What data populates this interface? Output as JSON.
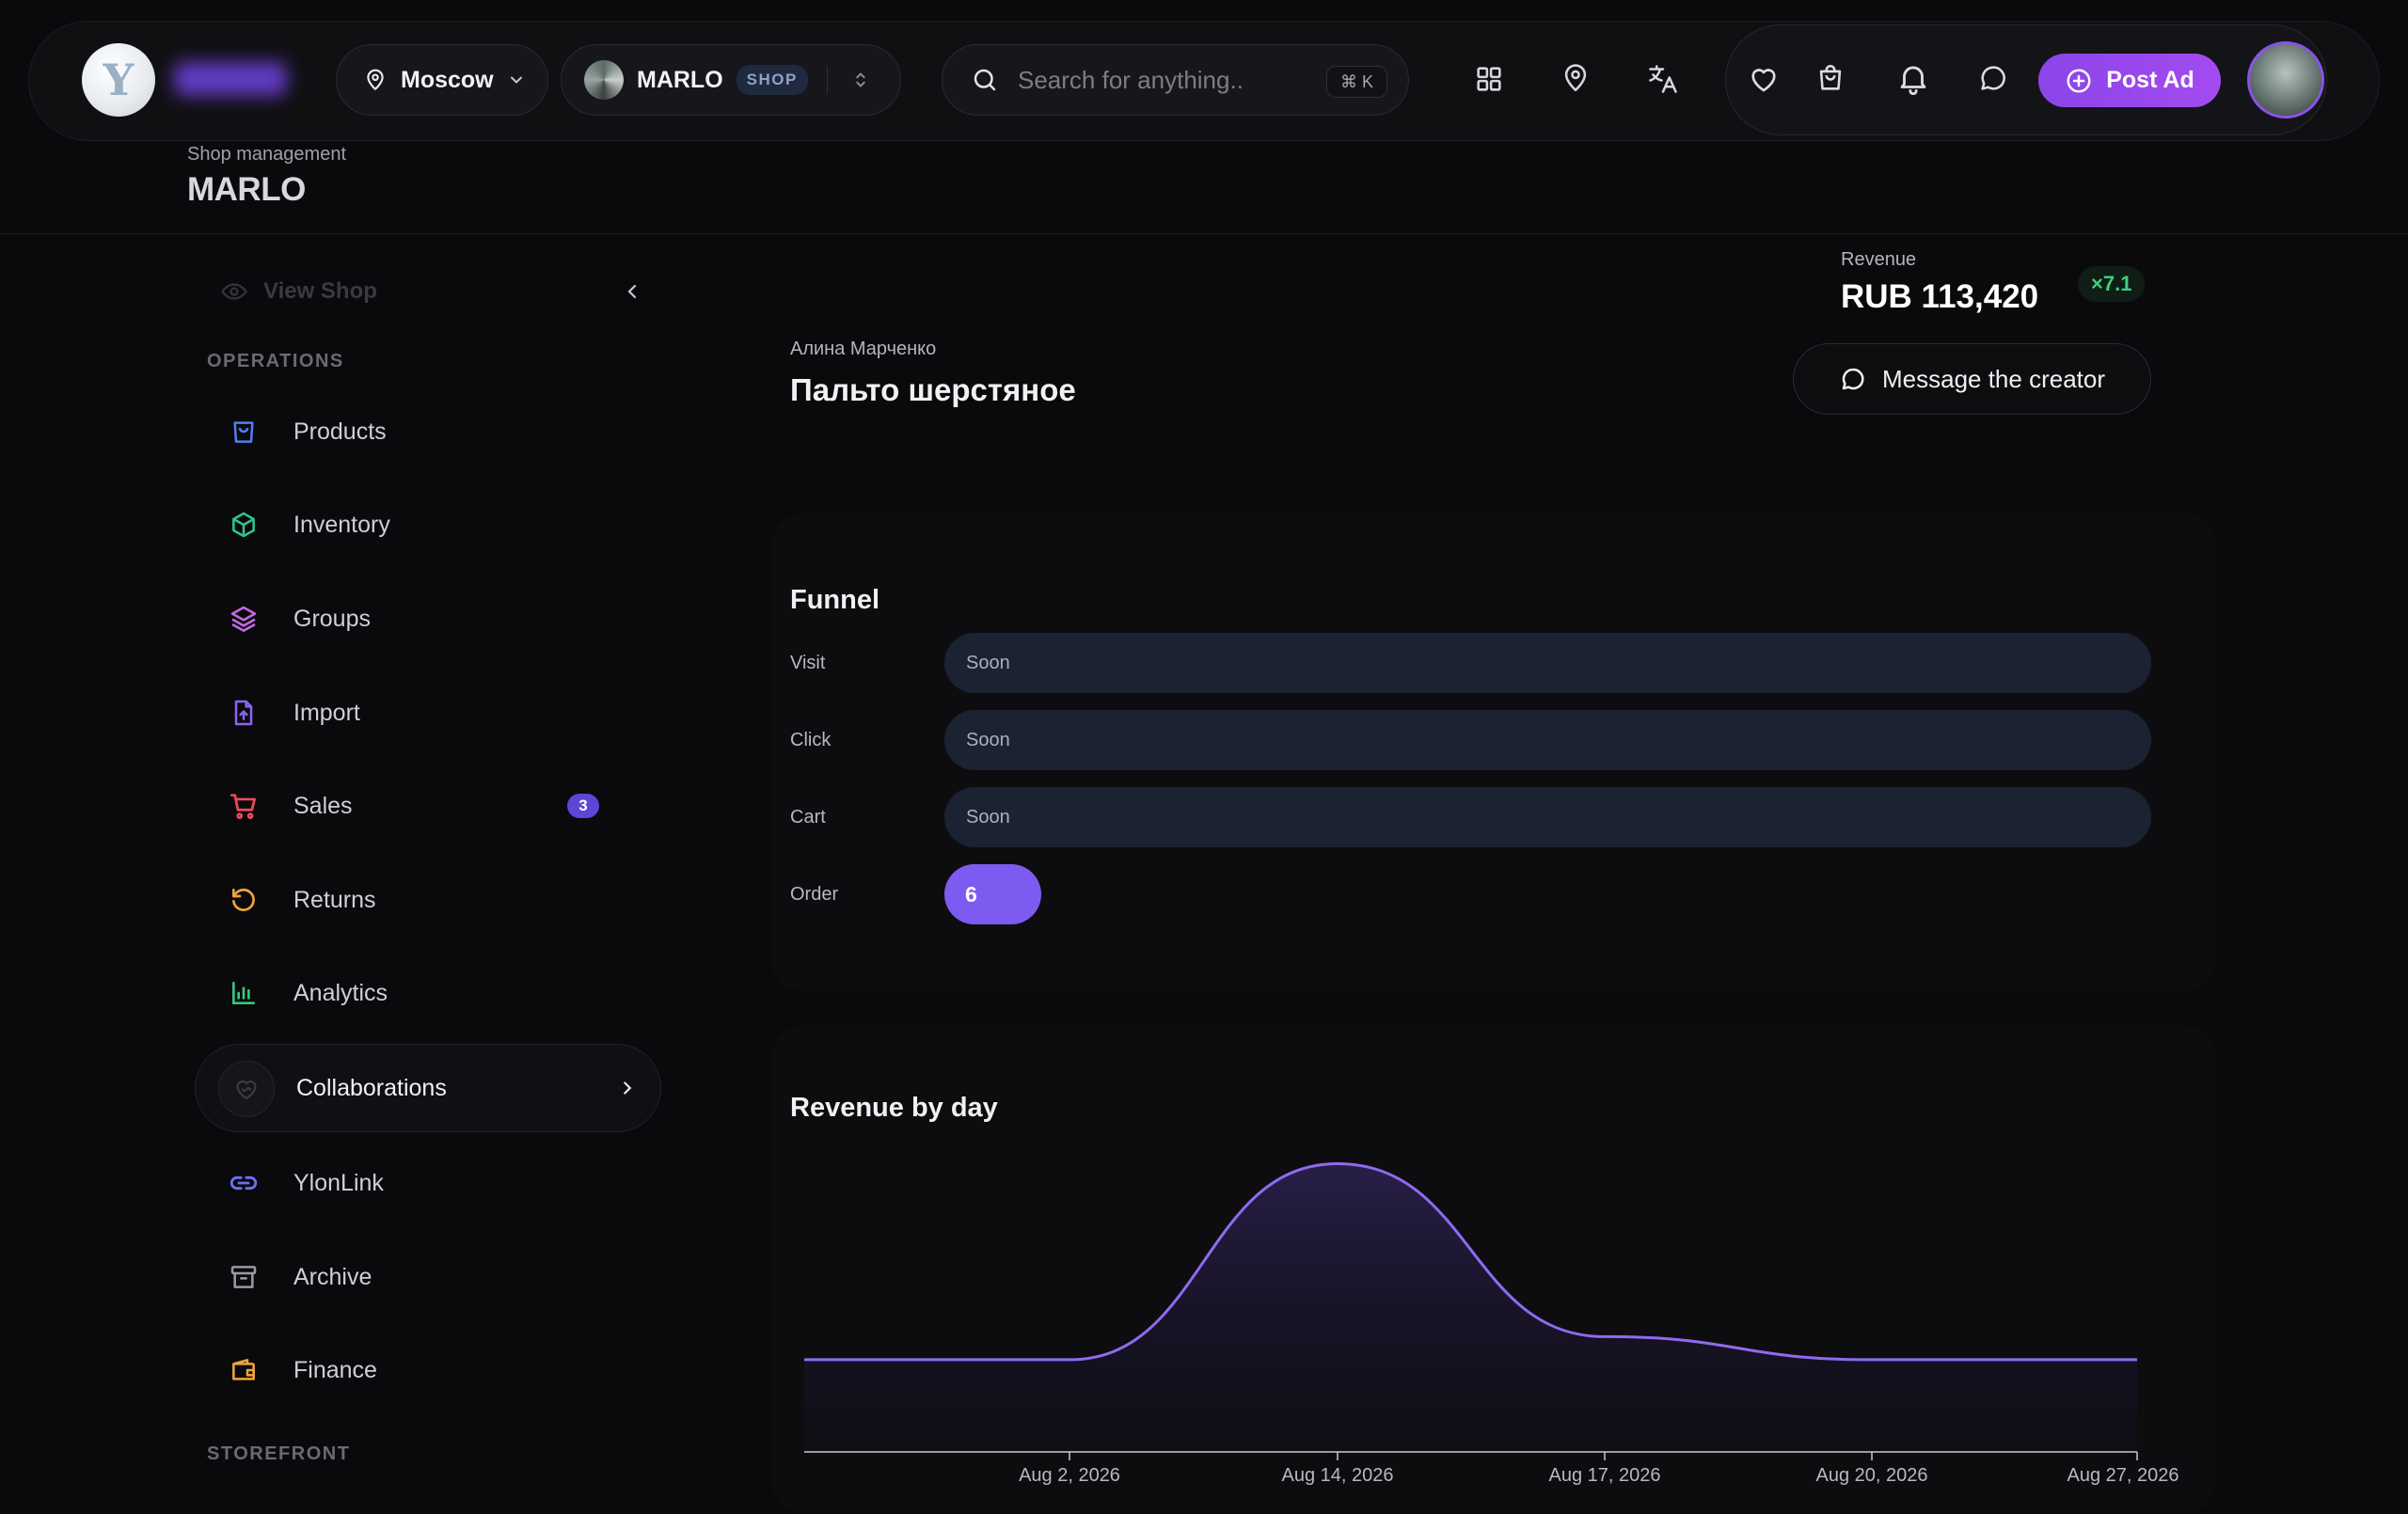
{
  "topbar": {
    "logo_letter": "Y",
    "city": "Moscow",
    "shop_name": "MARLO",
    "shop_badge": "SHOP",
    "search_placeholder": "Search for anything..",
    "search_shortcut": "⌘ K",
    "icons": [
      "grid-icon",
      "map-pin-icon",
      "translate-icon",
      "heart-icon",
      "shopping-bag-icon",
      "bell-icon",
      "chat-icon"
    ],
    "post_ad_label": "Post Ad",
    "accent_color": "#9b48ee"
  },
  "header": {
    "subtitle": "Shop management",
    "title": "MARLO"
  },
  "sidebar": {
    "view_shop": "View Shop",
    "operations_label": "OPERATIONS",
    "items": [
      {
        "label": "Products",
        "icon": "shopping-bag-icon",
        "color": "#4f7ff0"
      },
      {
        "label": "Inventory",
        "icon": "box-icon",
        "color": "#2fc48a"
      },
      {
        "label": "Groups",
        "icon": "layers-icon",
        "color": "#c46ae6"
      },
      {
        "label": "Import",
        "icon": "file-upload-icon",
        "color": "#8b63f0"
      },
      {
        "label": "Sales",
        "icon": "cart-icon",
        "color": "#ef4a5a",
        "badge": "3"
      },
      {
        "label": "Returns",
        "icon": "rotate-ccw-icon",
        "color": "#f0a53a"
      },
      {
        "label": "Analytics",
        "icon": "bar-chart-icon",
        "color": "#35c87a"
      },
      {
        "label": "Collaborations",
        "icon": "handshake-heart-icon",
        "active": true
      },
      {
        "label": "YlonLink",
        "icon": "link-icon",
        "color": "#6e6ff0"
      },
      {
        "label": "Archive",
        "icon": "archive-icon",
        "color": "#9a9aa3"
      },
      {
        "label": "Finance",
        "icon": "wallet-icon",
        "color": "#f0a53a"
      }
    ],
    "storefront_label": "STOREFRONT"
  },
  "main": {
    "creator_name": "Алина Марченко",
    "product_title": "Пальто шерстяное",
    "revenue_label": "Revenue",
    "revenue_value": "RUB 113,420",
    "revenue_badge": "×7.1",
    "message_button": "Message the creator",
    "funnel": {
      "title": "Funnel",
      "rows": [
        {
          "label": "Visit",
          "value": "Soon"
        },
        {
          "label": "Click",
          "value": "Soon"
        },
        {
          "label": "Cart",
          "value": "Soon"
        },
        {
          "label": "Order",
          "value": "6"
        }
      ]
    },
    "revenue_chart_title": "Revenue by day"
  },
  "chart_data": {
    "type": "area",
    "title": "Revenue by day",
    "x_ticks": [
      "Aug 2, 2026",
      "Aug 14, 2026",
      "Aug 17, 2026",
      "Aug 20, 2026",
      "Aug 27, 2026"
    ],
    "series": [
      {
        "values": [
          0.32,
          0.32,
          1.0,
          0.4,
          0.32,
          0.32
        ]
      }
    ],
    "x": [
      "",
      "Aug 2, 2026",
      "Aug 14, 2026",
      "Aug 17, 2026",
      "Aug 20, 2026",
      "Aug 27, 2026"
    ],
    "grid": false,
    "line_color": "#8f6af0"
  }
}
